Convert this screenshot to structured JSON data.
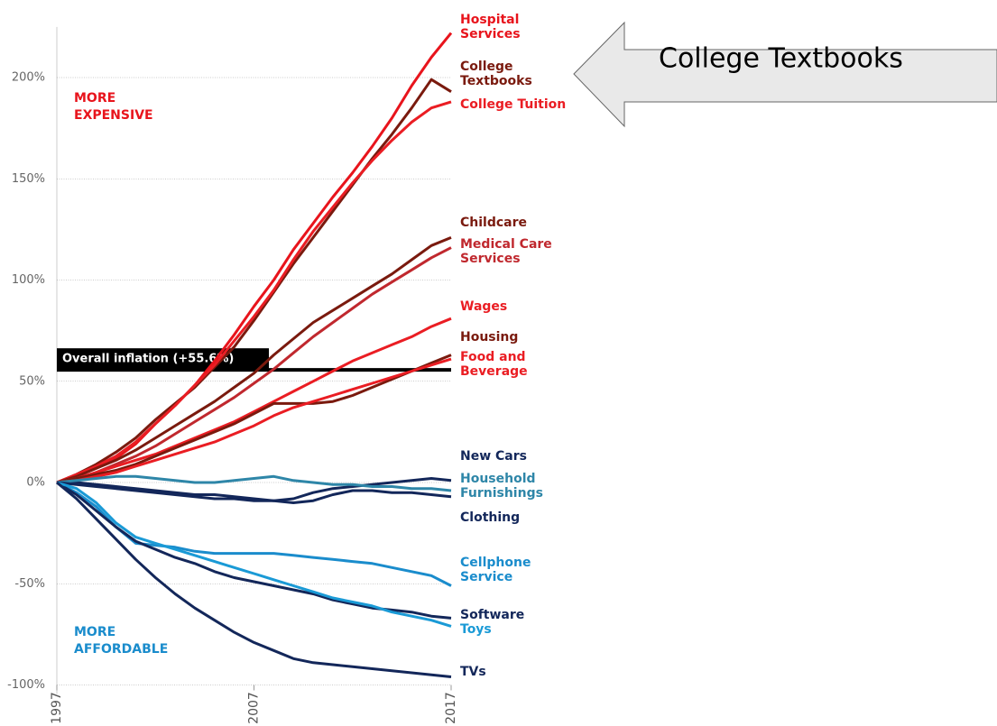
{
  "chart_data": {
    "type": "line",
    "x": [
      1997,
      1998,
      1999,
      2000,
      2001,
      2002,
      2003,
      2004,
      2005,
      2006,
      2007,
      2008,
      2009,
      2010,
      2011,
      2012,
      2013,
      2014,
      2015,
      2016,
      2017
    ],
    "xlim": [
      1997,
      2017
    ],
    "xticks": [
      1997,
      2007,
      2017
    ],
    "ylim": [
      -100,
      225
    ],
    "yticks": [
      {
        "value": -100,
        "label": "-100%"
      },
      {
        "value": -50,
        "label": "-50%"
      },
      {
        "value": 0,
        "label": "0%"
      },
      {
        "value": 50,
        "label": "50%"
      },
      {
        "value": 100,
        "label": "100%"
      },
      {
        "value": 150,
        "label": "150%"
      },
      {
        "value": 200,
        "label": "200%"
      }
    ],
    "grid": true,
    "series": [
      {
        "name": "Hospital Services",
        "color": "#e8141c",
        "values": [
          0,
          3,
          7,
          12,
          19,
          29,
          38,
          48,
          60,
          73,
          87,
          100,
          115,
          128,
          141,
          153,
          166,
          180,
          196,
          210,
          222
        ]
      },
      {
        "name": "College Textbooks",
        "color": "#7a1a0e",
        "values": [
          0,
          4,
          9,
          15,
          22,
          31,
          39,
          47,
          57,
          67,
          80,
          94,
          108,
          121,
          134,
          147,
          160,
          172,
          185,
          199,
          193
        ]
      },
      {
        "name": "College Tuition",
        "color": "#ea1d23",
        "values": [
          0,
          4,
          8,
          13,
          20,
          29,
          38,
          48,
          58,
          70,
          82,
          95,
          110,
          124,
          136,
          148,
          159,
          169,
          178,
          185,
          188
        ]
      },
      {
        "name": "Childcare",
        "color": "#7a1a0e",
        "values": [
          0,
          3,
          7,
          11,
          16,
          22,
          28,
          34,
          40,
          47,
          54,
          63,
          71,
          79,
          85,
          91,
          97,
          103,
          110,
          117,
          121
        ]
      },
      {
        "name": "Medical Care Services",
        "color": "#c0282e",
        "values": [
          0,
          2,
          5,
          9,
          13,
          18,
          24,
          30,
          36,
          42,
          49,
          56,
          64,
          72,
          79,
          86,
          93,
          99,
          105,
          111,
          116
        ]
      },
      {
        "name": "Wages",
        "color": "#ea1d23",
        "values": [
          0,
          2,
          5,
          8,
          11,
          14,
          18,
          22,
          26,
          30,
          35,
          40,
          45,
          50,
          55,
          60,
          64,
          68,
          72,
          77,
          81
        ]
      },
      {
        "name": "Housing",
        "color": "#7a1a0e",
        "values": [
          0,
          2,
          4,
          6,
          9,
          13,
          17,
          21,
          25,
          29,
          34,
          39,
          39,
          39,
          40,
          43,
          47,
          51,
          55,
          59,
          63
        ]
      },
      {
        "name": "Food and Beverage",
        "color": "#ea1d23",
        "values": [
          0,
          1,
          3,
          5,
          8,
          11,
          14,
          17,
          20,
          24,
          28,
          33,
          37,
          40,
          43,
          46,
          49,
          52,
          55,
          58,
          61
        ]
      },
      {
        "name": "New Cars",
        "color": "#13275a",
        "values": [
          0,
          0,
          -1,
          -2,
          -3,
          -4,
          -5,
          -6,
          -6,
          -7,
          -8,
          -9,
          -8,
          -5,
          -3,
          -2,
          -1,
          0,
          1,
          2,
          1
        ]
      },
      {
        "name": "Household Furnishings",
        "color": "#2e86a8",
        "values": [
          0,
          1,
          2,
          3,
          3,
          2,
          1,
          0,
          0,
          1,
          2,
          3,
          1,
          0,
          -1,
          -1,
          -2,
          -2,
          -3,
          -3,
          -4
        ]
      },
      {
        "name": "Clothing",
        "color": "#13275a",
        "values": [
          0,
          -1,
          -2,
          -3,
          -4,
          -5,
          -6,
          -7,
          -8,
          -8,
          -9,
          -9,
          -10,
          -9,
          -6,
          -4,
          -4,
          -5,
          -5,
          -6,
          -7
        ]
      },
      {
        "name": "Cellphone Service",
        "color": "#1a8ccc",
        "values": [
          0,
          -5,
          -12,
          -22,
          -30,
          -31,
          -32,
          -34,
          -35,
          -35,
          -35,
          -35,
          -36,
          -37,
          -38,
          -39,
          -40,
          -42,
          -44,
          -46,
          -51
        ]
      },
      {
        "name": "Software",
        "color": "#13275a",
        "values": [
          0,
          -6,
          -14,
          -22,
          -29,
          -33,
          -37,
          -40,
          -44,
          -47,
          -49,
          -51,
          -53,
          -55,
          -58,
          -60,
          -62,
          -63,
          -64,
          -66,
          -67
        ]
      },
      {
        "name": "Toys",
        "color": "#1a9ad6",
        "values": [
          0,
          -3,
          -10,
          -20,
          -27,
          -30,
          -33,
          -36,
          -39,
          -42,
          -45,
          -48,
          -51,
          -54,
          -57,
          -59,
          -61,
          -64,
          -66,
          -68,
          -71
        ]
      },
      {
        "name": "TVs",
        "color": "#13275a",
        "values": [
          0,
          -8,
          -18,
          -28,
          -38,
          -47,
          -55,
          -62,
          -68,
          -74,
          -79,
          -83,
          -87,
          -89,
          -90,
          -91,
          -92,
          -93,
          -94,
          -95,
          -96
        ]
      }
    ],
    "annotations": [
      {
        "text": "MORE EXPENSIVE",
        "color": "#e8141c"
      },
      {
        "text": "MORE AFFORDABLE",
        "color": "#1a8ccc"
      }
    ],
    "inflation": {
      "label": "Overall inflation (+55.6%)",
      "value": 55.6
    },
    "callout": "College Textbooks"
  }
}
